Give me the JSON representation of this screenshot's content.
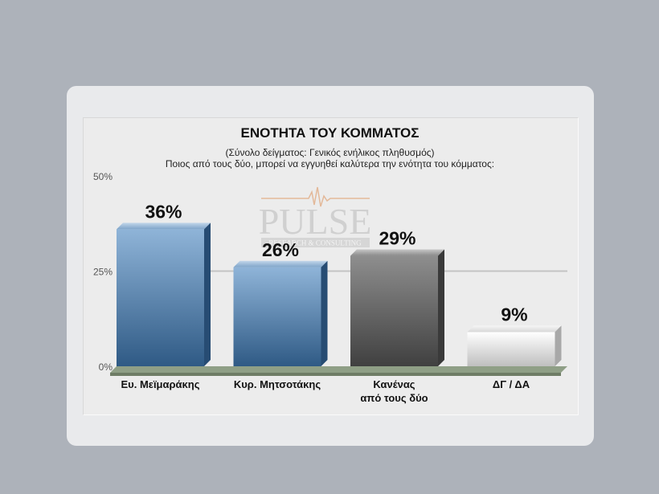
{
  "chart_data": {
    "type": "bar",
    "title": "ΕΝΟΤΗΤΑ ΤΟΥ ΚΟΜΜΑΤΟΣ",
    "subtitle_1": "(Σύνολο δείγματος: Γενικός ενήλικος πληθυσμός)",
    "subtitle_2": "Ποιος από τους δύο, μπορεί να εγγυηθεί καλύτερα την ενότητα του κόμματος:",
    "categories": [
      [
        "Ευ. Μεϊμαράκης"
      ],
      [
        "Κυρ. Μητσοτάκης"
      ],
      [
        "Κανένας",
        "από τους δύο"
      ],
      [
        "ΔΓ / ΔΑ"
      ]
    ],
    "values": [
      36,
      26,
      29,
      9
    ],
    "value_labels": [
      "36%",
      "26%",
      "29%",
      "9%"
    ],
    "bar_styles": [
      "blue",
      "blue",
      "gray",
      "white"
    ],
    "ylim": [
      0,
      50
    ],
    "yticks": [
      {
        "value": 0,
        "label": "0%"
      },
      {
        "value": 25,
        "label": "25%"
      },
      {
        "value": 50,
        "label": "50%"
      }
    ],
    "gridline_at": 25,
    "watermark": {
      "main": "PULSE",
      "sub": "RESEARCH & CONSULTING"
    }
  }
}
